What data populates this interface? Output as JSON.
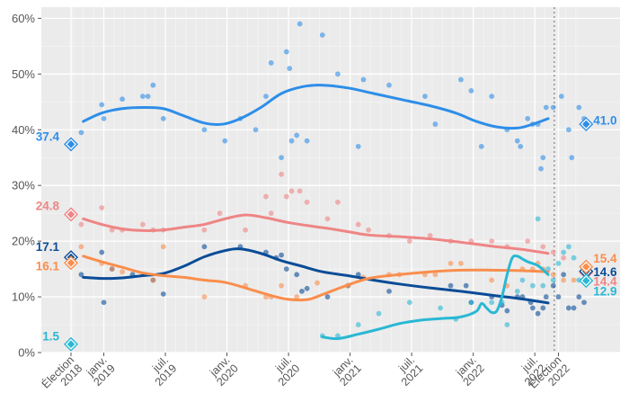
{
  "chart_data": {
    "type": "scatter",
    "title": "",
    "xlabel": "",
    "ylabel": "",
    "ylim": [
      0,
      62
    ],
    "y_ticks": [
      "0%",
      "10%",
      "20%",
      "30%",
      "40%",
      "50%",
      "60%"
    ],
    "x_ticks": [
      {
        "t": 0,
        "label": "Élection 2018"
      },
      {
        "t": 3.2,
        "label": "janv. 2019"
      },
      {
        "t": 9.2,
        "label": "juil. 2019"
      },
      {
        "t": 15.2,
        "label": "janv. 2020"
      },
      {
        "t": 21.2,
        "label": "juil. 2020"
      },
      {
        "t": 27.2,
        "label": "janv. 2021"
      },
      {
        "t": 33.2,
        "label": "juil. 2021"
      },
      {
        "t": 39.2,
        "label": "janv. 2022"
      },
      {
        "t": 45.2,
        "label": "juil. 2022"
      },
      {
        "t": 47.5,
        "label": "Élection 2022"
      }
    ],
    "series": [
      {
        "name": "blue",
        "color": "#2e8ee8",
        "start_label": "37.4",
        "start_value": 37.4,
        "end_label": "41.0",
        "end_value": 41.0,
        "trend": [
          [
            1.2,
            41.5
          ],
          [
            3,
            43
          ],
          [
            5,
            43.8
          ],
          [
            7,
            44
          ],
          [
            9,
            43.8
          ],
          [
            11,
            42.5
          ],
          [
            13,
            41.2
          ],
          [
            14.8,
            41
          ],
          [
            16.5,
            42
          ],
          [
            18.5,
            44
          ],
          [
            20.5,
            46.5
          ],
          [
            22.5,
            47.7
          ],
          [
            24.5,
            48
          ],
          [
            27,
            47.5
          ],
          [
            29.5,
            46.5
          ],
          [
            32,
            45.5
          ],
          [
            35,
            44.3
          ],
          [
            37.5,
            43
          ],
          [
            39.5,
            41.5
          ],
          [
            41.5,
            40.5
          ],
          [
            43.5,
            40.3
          ],
          [
            45,
            41
          ],
          [
            46.5,
            42
          ]
        ],
        "points": [
          [
            1,
            39.5
          ],
          [
            3,
            44.5
          ],
          [
            3.2,
            42
          ],
          [
            5,
            45.5
          ],
          [
            7,
            46
          ],
          [
            7.5,
            46
          ],
          [
            8,
            48
          ],
          [
            9,
            42
          ],
          [
            13,
            40
          ],
          [
            15,
            38
          ],
          [
            16.5,
            42
          ],
          [
            18,
            40
          ],
          [
            19,
            46
          ],
          [
            19.5,
            52
          ],
          [
            20.5,
            35
          ],
          [
            21,
            54
          ],
          [
            21.3,
            51
          ],
          [
            21.5,
            38
          ],
          [
            22,
            39
          ],
          [
            22.3,
            59
          ],
          [
            23,
            38
          ],
          [
            24.5,
            57
          ],
          [
            26,
            50
          ],
          [
            28,
            37
          ],
          [
            28.5,
            49
          ],
          [
            31,
            48
          ],
          [
            34.5,
            46
          ],
          [
            35.5,
            41
          ],
          [
            38,
            49
          ],
          [
            39,
            47
          ],
          [
            40,
            37
          ],
          [
            41,
            46
          ],
          [
            42.5,
            40
          ],
          [
            43.5,
            38
          ],
          [
            43.8,
            37
          ],
          [
            44.5,
            42
          ],
          [
            45,
            41
          ],
          [
            45.5,
            41
          ],
          [
            45.8,
            33
          ],
          [
            46,
            35
          ],
          [
            46.3,
            44
          ],
          [
            47,
            44
          ],
          [
            47.8,
            46
          ],
          [
            48.5,
            40
          ],
          [
            48.8,
            35
          ],
          [
            49.5,
            44
          ],
          [
            50,
            42
          ]
        ]
      },
      {
        "name": "pink",
        "color": "#ef8585",
        "start_label": "24.8",
        "start_value": 24.8,
        "end_label": "14.4",
        "end_value": 14.4,
        "trend": [
          [
            1.2,
            24
          ],
          [
            3,
            23
          ],
          [
            5,
            22.2
          ],
          [
            7,
            21.9
          ],
          [
            9,
            22
          ],
          [
            11,
            22.5
          ],
          [
            13,
            23
          ],
          [
            15,
            24
          ],
          [
            17,
            24.7
          ],
          [
            19,
            24.2
          ],
          [
            21,
            23.4
          ],
          [
            23,
            22.8
          ],
          [
            25,
            22.3
          ],
          [
            27,
            21.7
          ],
          [
            29,
            21.1
          ],
          [
            32,
            20.8
          ],
          [
            35,
            20.4
          ],
          [
            38,
            19.8
          ],
          [
            41,
            19.1
          ],
          [
            44,
            18.5
          ],
          [
            46.5,
            17.8
          ]
        ],
        "points": [
          [
            1,
            23
          ],
          [
            3,
            26
          ],
          [
            4,
            22
          ],
          [
            5,
            22
          ],
          [
            7,
            23
          ],
          [
            8,
            22
          ],
          [
            9,
            22
          ],
          [
            13,
            22
          ],
          [
            14.5,
            25
          ],
          [
            17,
            22
          ],
          [
            19,
            28
          ],
          [
            19.5,
            25
          ],
          [
            20.5,
            32
          ],
          [
            21,
            28
          ],
          [
            21.5,
            29
          ],
          [
            22.3,
            29
          ],
          [
            23,
            27
          ],
          [
            25,
            24
          ],
          [
            26,
            27
          ],
          [
            28,
            23
          ],
          [
            29,
            22
          ],
          [
            31,
            21
          ],
          [
            33,
            20
          ],
          [
            35,
            21
          ],
          [
            37,
            20
          ],
          [
            39,
            20
          ],
          [
            41,
            20
          ],
          [
            42.5,
            19
          ],
          [
            44.5,
            20
          ],
          [
            46,
            19
          ],
          [
            47,
            18
          ],
          [
            48,
            17
          ]
        ]
      },
      {
        "name": "navy",
        "color": "#0a4c97",
        "start_label": "17.1",
        "start_value": 17.1,
        "end_label": "14.6",
        "end_value": 14.6,
        "trend": [
          [
            1.2,
            13.5
          ],
          [
            3,
            13.3
          ],
          [
            5,
            13.4
          ],
          [
            7,
            13.8
          ],
          [
            9,
            14.2
          ],
          [
            11,
            15.5
          ],
          [
            13,
            17.2
          ],
          [
            15,
            18.3
          ],
          [
            16.5,
            18.6
          ],
          [
            18.5,
            17.8
          ],
          [
            20.5,
            16.5
          ],
          [
            22.5,
            15.5
          ],
          [
            24.5,
            14.5
          ],
          [
            27,
            13.8
          ],
          [
            29.5,
            13
          ],
          [
            32,
            12.3
          ],
          [
            35,
            11.6
          ],
          [
            38,
            11
          ],
          [
            41,
            10.3
          ],
          [
            44,
            9.6
          ],
          [
            46.5,
            8.9
          ]
        ],
        "points": [
          [
            1,
            14
          ],
          [
            3,
            18
          ],
          [
            3.2,
            9
          ],
          [
            4,
            15
          ],
          [
            6,
            14
          ],
          [
            8,
            13
          ],
          [
            9,
            10.5
          ],
          [
            13,
            19
          ],
          [
            16.5,
            19
          ],
          [
            19,
            18
          ],
          [
            20,
            17
          ],
          [
            20.5,
            17.5
          ],
          [
            21,
            15
          ],
          [
            22,
            14
          ],
          [
            22.5,
            11
          ],
          [
            23,
            11.5
          ],
          [
            25,
            10
          ],
          [
            27,
            12
          ],
          [
            28,
            14
          ],
          [
            31,
            11
          ],
          [
            37,
            12
          ],
          [
            38.5,
            12
          ],
          [
            39,
            9
          ],
          [
            41,
            10
          ],
          [
            42,
            8.5
          ],
          [
            42.5,
            7.5
          ],
          [
            43.5,
            10
          ],
          [
            44,
            10
          ],
          [
            44.8,
            9
          ],
          [
            45,
            8
          ],
          [
            45.5,
            7
          ],
          [
            46,
            8
          ],
          [
            46.3,
            10
          ],
          [
            47,
            12
          ],
          [
            47.5,
            10
          ],
          [
            48,
            14
          ],
          [
            48.5,
            8
          ],
          [
            49,
            8
          ],
          [
            49.5,
            10
          ],
          [
            50,
            9
          ]
        ]
      },
      {
        "name": "orange",
        "color": "#f98e4d",
        "start_label": "16.1",
        "start_value": 16.1,
        "end_label": "15.4",
        "end_value": 15.4,
        "trend": [
          [
            1.2,
            17.3
          ],
          [
            3,
            16.3
          ],
          [
            5,
            15.3
          ],
          [
            7,
            14.3
          ],
          [
            9,
            13.8
          ],
          [
            11,
            13.5
          ],
          [
            13,
            13
          ],
          [
            15,
            12.6
          ],
          [
            17,
            11.6
          ],
          [
            19,
            10.5
          ],
          [
            21,
            9.6
          ],
          [
            23,
            9.5
          ],
          [
            24.5,
            10.4
          ],
          [
            26.5,
            11.8
          ],
          [
            29,
            13.3
          ],
          [
            32,
            14
          ],
          [
            35,
            14.5
          ],
          [
            38,
            14.8
          ],
          [
            41,
            14.8
          ],
          [
            44,
            14.7
          ],
          [
            46.5,
            14.5
          ]
        ],
        "points": [
          [
            1,
            19
          ],
          [
            3,
            16
          ],
          [
            4,
            15
          ],
          [
            5,
            14.5
          ],
          [
            7,
            14
          ],
          [
            8,
            13
          ],
          [
            9,
            19
          ],
          [
            13,
            10
          ],
          [
            17,
            12
          ],
          [
            19,
            10
          ],
          [
            19.5,
            10
          ],
          [
            20.5,
            12
          ],
          [
            22,
            10
          ],
          [
            24,
            12.5
          ],
          [
            27,
            12
          ],
          [
            28.5,
            13.5
          ],
          [
            31,
            14
          ],
          [
            32,
            14
          ],
          [
            34.5,
            14
          ],
          [
            35.5,
            14
          ],
          [
            37,
            16
          ],
          [
            38,
            16
          ],
          [
            41,
            13
          ],
          [
            42.5,
            12
          ],
          [
            44,
            15
          ],
          [
            45,
            15
          ],
          [
            45.5,
            16
          ],
          [
            46,
            15
          ],
          [
            47,
            14
          ],
          [
            48,
            13
          ],
          [
            49,
            13
          ]
        ]
      },
      {
        "name": "cyan",
        "color": "#29b8d4",
        "start_label": "1.5",
        "start_value": 1.5,
        "end_label": "12.9",
        "end_value": 12.9,
        "trend": [
          [
            24.5,
            2.8
          ],
          [
            26,
            2.5
          ],
          [
            28,
            3.3
          ],
          [
            30,
            4.2
          ],
          [
            32,
            5.2
          ],
          [
            34,
            5.8
          ],
          [
            36,
            6.1
          ],
          [
            38,
            6.4
          ],
          [
            39.5,
            7.4
          ],
          [
            40,
            8.8
          ],
          [
            40.5,
            8
          ],
          [
            41,
            7.2
          ],
          [
            41.5,
            7.5
          ],
          [
            42,
            10
          ],
          [
            42.5,
            14
          ],
          [
            43,
            17
          ],
          [
            43.5,
            17.3
          ],
          [
            44,
            16.8
          ],
          [
            44.5,
            16.3
          ],
          [
            45.5,
            15.6
          ],
          [
            46.5,
            14
          ]
        ],
        "points": [
          [
            24.5,
            3
          ],
          [
            26,
            3
          ],
          [
            28,
            5
          ],
          [
            30,
            7
          ],
          [
            33,
            9
          ],
          [
            36,
            8
          ],
          [
            37.5,
            6
          ],
          [
            39,
            9
          ],
          [
            41,
            9
          ],
          [
            42,
            9
          ],
          [
            42.5,
            5
          ],
          [
            43.5,
            11
          ],
          [
            44,
            13
          ],
          [
            45,
            12
          ],
          [
            45.5,
            24
          ],
          [
            46,
            12
          ],
          [
            46.5,
            15
          ],
          [
            47,
            13
          ],
          [
            47.5,
            16
          ],
          [
            48,
            18
          ],
          [
            48.5,
            19
          ],
          [
            49,
            17
          ],
          [
            49.5,
            13
          ],
          [
            50,
            15
          ]
        ]
      }
    ]
  }
}
